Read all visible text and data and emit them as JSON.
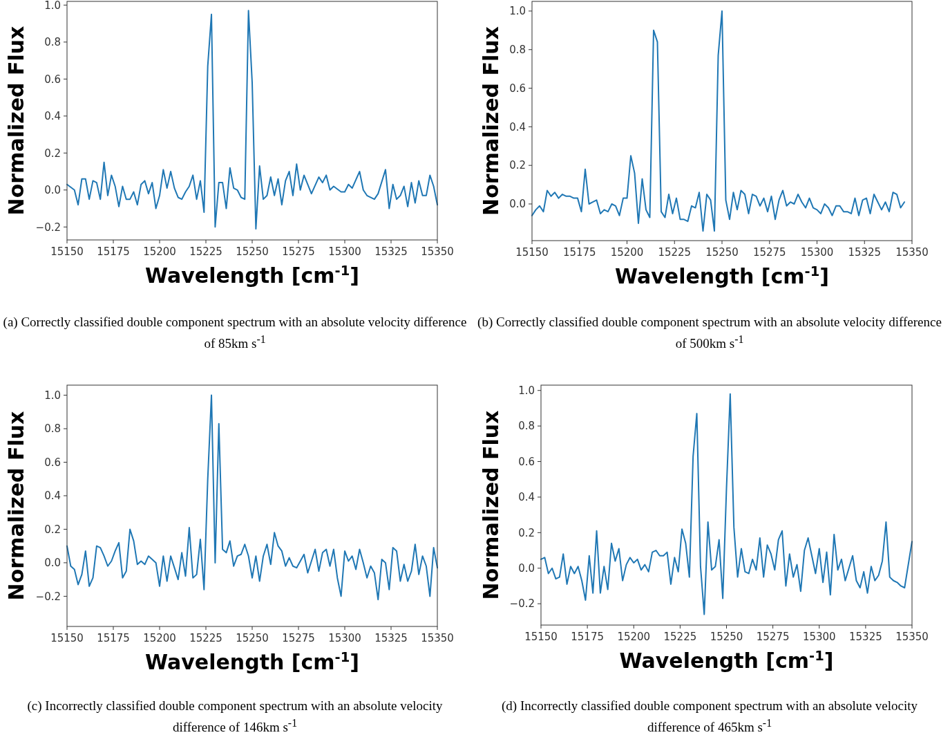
{
  "chart_data": [
    {
      "type": "line",
      "xlabel": "Wavelength [cm$^{-1}$]",
      "ylabel": "Normalized Flux",
      "xlim": [
        15150,
        15350
      ],
      "ylim": [
        -0.27,
        1.02
      ],
      "xticks": [
        15150,
        15175,
        15200,
        15225,
        15250,
        15275,
        15300,
        15325,
        15350
      ],
      "yticks": [
        {
          "value": -0.2,
          "label": "−0.2"
        },
        {
          "value": 0,
          "label": "0.0"
        },
        {
          "value": 0.2,
          "label": "0.2"
        },
        {
          "value": 0.4,
          "label": "0.4"
        },
        {
          "value": 0.6,
          "label": "0.6"
        },
        {
          "value": 0.8,
          "label": "0.8"
        },
        {
          "value": 1,
          "label": "1.0"
        }
      ],
      "annotations": [
        "(a) Correctly classified double component spectrum with an absolute velocity difference of 85km s$^{-1}$"
      ],
      "x": [
        15150,
        15154,
        15156,
        15158,
        15160,
        15162,
        15164,
        15166,
        15168,
        15170,
        15172,
        15174,
        15176,
        15178,
        15180,
        15182,
        15184,
        15186,
        15188,
        15190,
        15192,
        15194,
        15196,
        15198,
        15200,
        15202,
        15204,
        15206,
        15208,
        15210,
        15212,
        15214,
        15216,
        15218,
        15220,
        15222,
        15224,
        15226,
        15228,
        15230,
        15232,
        15234,
        15236,
        15238,
        15240,
        15242,
        15244,
        15246,
        15248,
        15250,
        15252,
        15254,
        15256,
        15258,
        15260,
        15262,
        15264,
        15266,
        15268,
        15270,
        15272,
        15274,
        15276,
        15278,
        15282,
        15286,
        15288,
        15290,
        15292,
        15294,
        15298,
        15300,
        15302,
        15304,
        15308,
        15310,
        15312,
        15316,
        15318,
        15322,
        15324,
        15326,
        15328,
        15330,
        15332,
        15334,
        15336,
        15338,
        15340,
        15342,
        15344,
        15346,
        15348,
        15350
      ],
      "series": [
        {
          "color": "#1f77b4",
          "values": [
            0.03,
            0.0,
            -0.08,
            0.06,
            0.06,
            -0.05,
            0.05,
            0.04,
            -0.05,
            0.15,
            -0.03,
            0.08,
            0.02,
            -0.09,
            0.02,
            -0.05,
            -0.05,
            -0.01,
            -0.08,
            0.03,
            0.05,
            -0.02,
            0.04,
            -0.1,
            -0.03,
            0.11,
            0.01,
            0.1,
            0.01,
            -0.04,
            -0.05,
            -0.01,
            0.02,
            0.08,
            -0.05,
            0.05,
            -0.12,
            0.67,
            0.95,
            -0.2,
            0.04,
            0.04,
            -0.1,
            0.12,
            0.01,
            0.0,
            -0.04,
            -0.05,
            0.97,
            0.58,
            -0.21,
            0.13,
            -0.05,
            -0.03,
            0.07,
            -0.03,
            0.06,
            -0.08,
            0.05,
            0.1,
            -0.03,
            0.14,
            0.0,
            0.08,
            -0.02,
            0.07,
            0.04,
            0.08,
            0.0,
            0.02,
            -0.01,
            -0.01,
            0.03,
            0.01,
            0.1,
            0.0,
            -0.03,
            -0.05,
            -0.02,
            0.11,
            -0.1,
            0.03,
            -0.05,
            -0.03,
            0.02,
            -0.09,
            0.04,
            -0.07,
            0.05,
            -0.03,
            -0.03,
            0.08,
            0.02,
            -0.08
          ]
        }
      ]
    },
    {
      "type": "line",
      "xlabel": "Wavelength [cm$^{-1}$]",
      "ylabel": "Normalized Flux",
      "xlim": [
        15150,
        15350
      ],
      "ylim": [
        -0.19,
        1.05
      ],
      "xticks": [
        15150,
        15175,
        15200,
        15225,
        15250,
        15275,
        15300,
        15325,
        15350
      ],
      "yticks": [
        {
          "value": 0,
          "label": "0.0"
        },
        {
          "value": 0.2,
          "label": "0.2"
        },
        {
          "value": 0.4,
          "label": "0.4"
        },
        {
          "value": 0.6,
          "label": "0.6"
        },
        {
          "value": 0.8,
          "label": "0.8"
        },
        {
          "value": 1,
          "label": "1.0"
        }
      ],
      "annotations": [
        "(b) Correctly classified double component spectrum with an absolute velocity difference of 500km s$^{-1}$"
      ],
      "x": [
        15150,
        15152,
        15154,
        15156,
        15158,
        15160,
        15162,
        15164,
        15166,
        15168,
        15170,
        15172,
        15174,
        15176,
        15178,
        15180,
        15182,
        15184,
        15186,
        15188,
        15190,
        15192,
        15194,
        15196,
        15198,
        15200,
        15202,
        15204,
        15206,
        15208,
        15210,
        15212,
        15214,
        15216,
        15218,
        15220,
        15222,
        15224,
        15226,
        15228,
        15230,
        15232,
        15234,
        15236,
        15238,
        15240,
        15242,
        15244,
        15246,
        15248,
        15250,
        15252,
        15254,
        15256,
        15258,
        15260,
        15262,
        15264,
        15266,
        15268,
        15270,
        15272,
        15274,
        15276,
        15278,
        15280,
        15282,
        15284,
        15286,
        15288,
        15290,
        15292,
        15294,
        15296,
        15298,
        15300,
        15302,
        15304,
        15306,
        15308,
        15310,
        15312,
        15314,
        15316,
        15318,
        15320,
        15322,
        15324,
        15326,
        15328,
        15330,
        15332,
        15334,
        15336,
        15338,
        15340,
        15342,
        15344,
        15346
      ],
      "series": [
        {
          "color": "#1f77b4",
          "values": [
            -0.06,
            -0.03,
            -0.01,
            -0.04,
            0.07,
            0.04,
            0.06,
            0.03,
            0.05,
            0.04,
            0.04,
            0.03,
            0.03,
            -0.04,
            0.18,
            0.0,
            0.01,
            0.02,
            -0.05,
            -0.03,
            -0.04,
            0.0,
            -0.01,
            -0.06,
            0.03,
            0.03,
            0.25,
            0.16,
            -0.1,
            0.13,
            -0.03,
            -0.07,
            0.9,
            0.84,
            -0.04,
            -0.07,
            0.05,
            -0.05,
            0.03,
            -0.08,
            -0.08,
            -0.09,
            -0.01,
            -0.02,
            0.06,
            -0.14,
            0.05,
            0.02,
            -0.14,
            0.77,
            1.0,
            0.02,
            -0.08,
            0.06,
            -0.03,
            0.07,
            0.05,
            -0.05,
            0.05,
            0.04,
            -0.01,
            0.03,
            -0.04,
            0.04,
            -0.08,
            0.02,
            0.07,
            -0.01,
            0.01,
            0.0,
            0.05,
            0.01,
            -0.02,
            0.03,
            -0.02,
            -0.03,
            -0.05,
            0.0,
            -0.02,
            -0.06,
            -0.01,
            -0.01,
            -0.04,
            -0.04,
            -0.05,
            0.03,
            -0.06,
            0.02,
            0.03,
            -0.05,
            0.05,
            0.01,
            -0.03,
            0.01,
            -0.04,
            0.06,
            0.05,
            -0.02,
            0.01
          ]
        }
      ]
    },
    {
      "type": "line",
      "xlabel": "Wavelength [cm$^{-1}$]",
      "ylabel": "Normalized Flux",
      "xlim": [
        15150,
        15350
      ],
      "ylim": [
        -0.38,
        1.06
      ],
      "xticks": [
        15150,
        15175,
        15200,
        15225,
        15250,
        15275,
        15300,
        15325,
        15350
      ],
      "yticks": [
        {
          "value": -0.2,
          "label": "−0.2"
        },
        {
          "value": 0,
          "label": "0.0"
        },
        {
          "value": 0.2,
          "label": "0.2"
        },
        {
          "value": 0.4,
          "label": "0.4"
        },
        {
          "value": 0.6,
          "label": "0.6"
        },
        {
          "value": 0.8,
          "label": "0.8"
        },
        {
          "value": 1,
          "label": "1.0"
        }
      ],
      "annotations": [
        "(c) Incorrectly classified double component spectrum with an absolute velocity difference of 146km s$^{-1}$"
      ],
      "x": [
        15150,
        15152,
        15154,
        15156,
        15158,
        15160,
        15162,
        15164,
        15166,
        15168,
        15170,
        15172,
        15174,
        15176,
        15178,
        15180,
        15182,
        15184,
        15186,
        15188,
        15190,
        15192,
        15194,
        15196,
        15198,
        15200,
        15202,
        15204,
        15206,
        15208,
        15210,
        15212,
        15214,
        15216,
        15218,
        15220,
        15222,
        15224,
        15226,
        15228,
        15230,
        15232,
        15234,
        15236,
        15238,
        15240,
        15242,
        15244,
        15246,
        15248,
        15250,
        15252,
        15254,
        15256,
        15258,
        15260,
        15262,
        15264,
        15266,
        15268,
        15270,
        15272,
        15274,
        15276,
        15278,
        15280,
        15282,
        15284,
        15286,
        15288,
        15290,
        15292,
        15294,
        15296,
        15298,
        15300,
        15302,
        15304,
        15306,
        15308,
        15310,
        15312,
        15314,
        15316,
        15318,
        15320,
        15322,
        15324,
        15326,
        15328,
        15330,
        15332,
        15334,
        15336,
        15338,
        15340,
        15342,
        15344,
        15346,
        15348,
        15350
      ],
      "series": [
        {
          "color": "#1f77b4",
          "values": [
            0.1,
            -0.02,
            -0.04,
            -0.13,
            -0.07,
            0.07,
            -0.14,
            -0.09,
            0.1,
            0.09,
            0.04,
            -0.02,
            0.01,
            0.07,
            0.12,
            -0.09,
            -0.05,
            0.2,
            0.13,
            -0.01,
            0.01,
            -0.01,
            0.04,
            0.02,
            0.0,
            -0.14,
            0.04,
            -0.11,
            0.04,
            -0.03,
            -0.1,
            0.06,
            -0.08,
            0.21,
            -0.09,
            -0.07,
            0.14,
            -0.16,
            0.5,
            1.0,
            0.0,
            0.83,
            0.08,
            0.06,
            0.13,
            -0.02,
            0.04,
            0.05,
            0.11,
            0.04,
            -0.09,
            0.04,
            -0.11,
            0.04,
            0.11,
            -0.01,
            0.18,
            0.1,
            0.07,
            -0.02,
            0.03,
            -0.02,
            -0.03,
            0.01,
            0.05,
            -0.06,
            0.01,
            0.08,
            -0.05,
            0.06,
            0.08,
            -0.02,
            0.08,
            -0.09,
            -0.2,
            0.07,
            0.01,
            0.04,
            -0.04,
            0.08,
            0.0,
            -0.09,
            -0.02,
            -0.06,
            -0.22,
            0.02,
            0.0,
            -0.16,
            0.09,
            0.07,
            -0.11,
            -0.01,
            -0.11,
            -0.05,
            0.11,
            -0.07,
            0.04,
            -0.02,
            -0.2,
            0.09,
            -0.03
          ]
        }
      ]
    },
    {
      "type": "line",
      "xlabel": "Wavelength [cm$^{-1}$]",
      "ylabel": "Normalized Flux",
      "xlim": [
        15150,
        15350
      ],
      "ylim": [
        -0.32,
        1.03
      ],
      "xticks": [
        15150,
        15175,
        15200,
        15225,
        15250,
        15275,
        15300,
        15325,
        15350
      ],
      "yticks": [
        {
          "value": -0.2,
          "label": "−0.2"
        },
        {
          "value": 0,
          "label": "0.0"
        },
        {
          "value": 0.2,
          "label": "0.2"
        },
        {
          "value": 0.4,
          "label": "0.4"
        },
        {
          "value": 0.6,
          "label": "0.6"
        },
        {
          "value": 0.8,
          "label": "0.8"
        },
        {
          "value": 1,
          "label": "1.0"
        }
      ],
      "annotations": [
        "(d) Incorrectly classified double component spectrum with an absolute velocity difference of 465km s$^{-1}$"
      ],
      "x": [
        15150,
        15152,
        15154,
        15156,
        15158,
        15160,
        15162,
        15164,
        15166,
        15168,
        15170,
        15172,
        15174,
        15176,
        15178,
        15180,
        15182,
        15184,
        15186,
        15188,
        15190,
        15192,
        15194,
        15196,
        15198,
        15200,
        15202,
        15204,
        15206,
        15208,
        15210,
        15212,
        15214,
        15216,
        15218,
        15220,
        15222,
        15224,
        15226,
        15228,
        15230,
        15232,
        15234,
        15236,
        15238,
        15240,
        15242,
        15244,
        15246,
        15248,
        15250,
        15252,
        15254,
        15256,
        15258,
        15260,
        15262,
        15264,
        15266,
        15268,
        15270,
        15272,
        15274,
        15276,
        15278,
        15280,
        15282,
        15284,
        15286,
        15288,
        15290,
        15292,
        15294,
        15296,
        15298,
        15300,
        15302,
        15304,
        15306,
        15308,
        15310,
        15312,
        15314,
        15316,
        15318,
        15320,
        15322,
        15324,
        15326,
        15328,
        15330,
        15332,
        15334,
        15336,
        15338,
        15340,
        15342,
        15344,
        15346,
        15350
      ],
      "series": [
        {
          "color": "#1f77b4",
          "values": [
            0.05,
            0.06,
            -0.03,
            0.0,
            -0.06,
            -0.05,
            0.08,
            -0.09,
            0.01,
            -0.03,
            0.01,
            -0.07,
            -0.18,
            0.07,
            -0.14,
            0.21,
            -0.14,
            0.01,
            -0.12,
            0.14,
            0.04,
            0.11,
            -0.07,
            0.02,
            0.06,
            0.03,
            0.05,
            -0.01,
            0.02,
            -0.02,
            0.09,
            0.1,
            0.07,
            0.07,
            0.09,
            -0.09,
            0.06,
            -0.02,
            0.22,
            0.14,
            -0.05,
            0.63,
            0.87,
            0.01,
            -0.26,
            0.26,
            -0.01,
            0.01,
            0.16,
            -0.17,
            0.45,
            0.98,
            0.23,
            -0.05,
            0.11,
            -0.02,
            -0.03,
            0.05,
            -0.01,
            0.17,
            -0.05,
            0.13,
            0.08,
            -0.01,
            0.16,
            0.21,
            -0.1,
            0.08,
            -0.05,
            0.02,
            -0.13,
            0.1,
            0.17,
            0.07,
            -0.03,
            0.11,
            -0.08,
            0.09,
            -0.15,
            0.19,
            -0.01,
            0.05,
            -0.07,
            0.0,
            0.07,
            -0.07,
            -0.11,
            -0.02,
            -0.14,
            0.01,
            -0.07,
            -0.04,
            0.04,
            0.26,
            -0.05,
            -0.07,
            -0.08,
            -0.1,
            -0.11,
            0.15
          ]
        }
      ]
    }
  ]
}
